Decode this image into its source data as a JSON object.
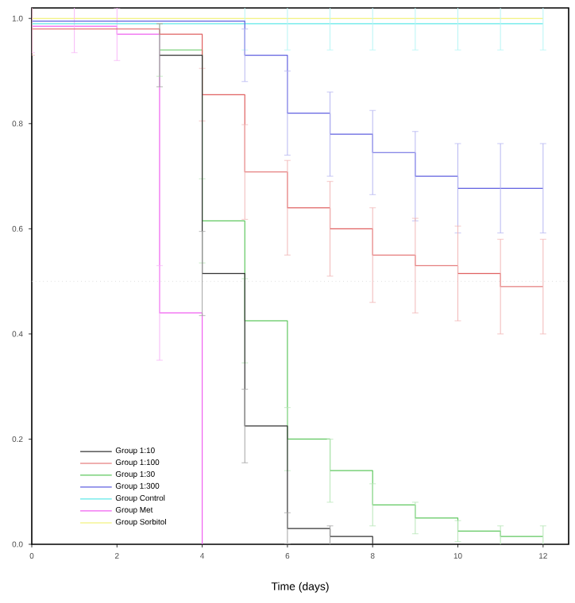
{
  "chart_data": {
    "type": "step",
    "xlabel": "Time (days)",
    "x": [
      0,
      1,
      2,
      3,
      4,
      5,
      6,
      7,
      8,
      9,
      10,
      11,
      12
    ],
    "xlim": [
      0,
      12.6
    ],
    "ylim": [
      0,
      1.02
    ],
    "xticks": [
      0,
      2,
      4,
      6,
      8,
      10,
      12
    ],
    "yticks": [
      {
        "value": 0,
        "label": "0.0"
      },
      {
        "value": 0.2,
        "label": "0.2"
      },
      {
        "value": 0.4,
        "label": "0.4"
      },
      {
        "value": 0.6,
        "label": "0.6"
      },
      {
        "value": 0.8,
        "label": "0.8"
      },
      {
        "value": 1,
        "label": "1.0"
      }
    ],
    "legend": "bottom left",
    "grid": false,
    "ref_lines": [
      {
        "axis": "y",
        "value": 0.5,
        "color": "#cccccc",
        "line_style": "dotted"
      }
    ],
    "series": [
      {
        "name": "Group 1:10",
        "color": "#333333",
        "values": [
          null,
          null,
          null,
          0.93,
          0.515,
          0.225,
          0.03,
          0.015,
          0,
          null,
          null,
          null,
          null
        ],
        "errors": [
          null,
          null,
          null,
          0.06,
          0.08,
          0.07,
          0.03,
          0.02,
          null,
          null,
          null,
          null,
          null
        ]
      },
      {
        "name": "Group 1:100",
        "color": "#e06060",
        "values": [
          0.98,
          0.98,
          0.98,
          0.97,
          0.855,
          0.708,
          0.64,
          0.6,
          0.55,
          0.53,
          0.515,
          0.49,
          0.49
        ],
        "errors": [
          0.05,
          null,
          null,
          null,
          0.05,
          0.09,
          0.09,
          0.09,
          0.09,
          0.09,
          0.09,
          0.09,
          0.09
        ]
      },
      {
        "name": "Group 1:30",
        "color": "#60c860",
        "values": [
          null,
          null,
          null,
          0.94,
          0.615,
          0.425,
          0.2,
          0.14,
          0.075,
          0.05,
          0.025,
          0.015,
          0.015
        ],
        "errors": [
          null,
          null,
          null,
          0.05,
          0.08,
          0.08,
          0.06,
          0.06,
          0.04,
          0.03,
          0.02,
          0.02,
          0.02
        ]
      },
      {
        "name": "Group 1:300",
        "color": "#6060e0",
        "values": [
          0.995,
          0.995,
          0.995,
          0.995,
          0.995,
          0.93,
          0.82,
          0.78,
          0.745,
          0.7,
          0.677,
          0.677,
          0.677
        ],
        "errors": [
          null,
          null,
          null,
          null,
          null,
          0.05,
          0.08,
          0.08,
          0.08,
          0.085,
          0.085,
          0.085,
          0.085
        ]
      },
      {
        "name": "Group Control",
        "color": "#60e8e8",
        "values": [
          0.99,
          0.99,
          0.99,
          0.99,
          0.99,
          0.99,
          0.99,
          0.99,
          0.99,
          0.99,
          0.99,
          0.99,
          0.99
        ],
        "errors": [
          null,
          null,
          null,
          null,
          null,
          0.05,
          0.05,
          0.05,
          0.05,
          0.05,
          0.05,
          0.05,
          0.05
        ]
      },
      {
        "name": "Group Met",
        "color": "#f060f0",
        "values": [
          0.985,
          0.985,
          0.97,
          0.44,
          0,
          null,
          null,
          null,
          null,
          null,
          null,
          null,
          null
        ],
        "errors": [
          0.05,
          0.05,
          0.05,
          0.09,
          null,
          null,
          null,
          null,
          null,
          null,
          null,
          null,
          null
        ]
      },
      {
        "name": "Group Sorbitol",
        "color": "#f0f060",
        "values": [
          1.0,
          1.0,
          1.0,
          1.0,
          1.0,
          1.0,
          1.0,
          1.0,
          1.0,
          1.0,
          1.0,
          1.0,
          1.0
        ]
      }
    ]
  }
}
